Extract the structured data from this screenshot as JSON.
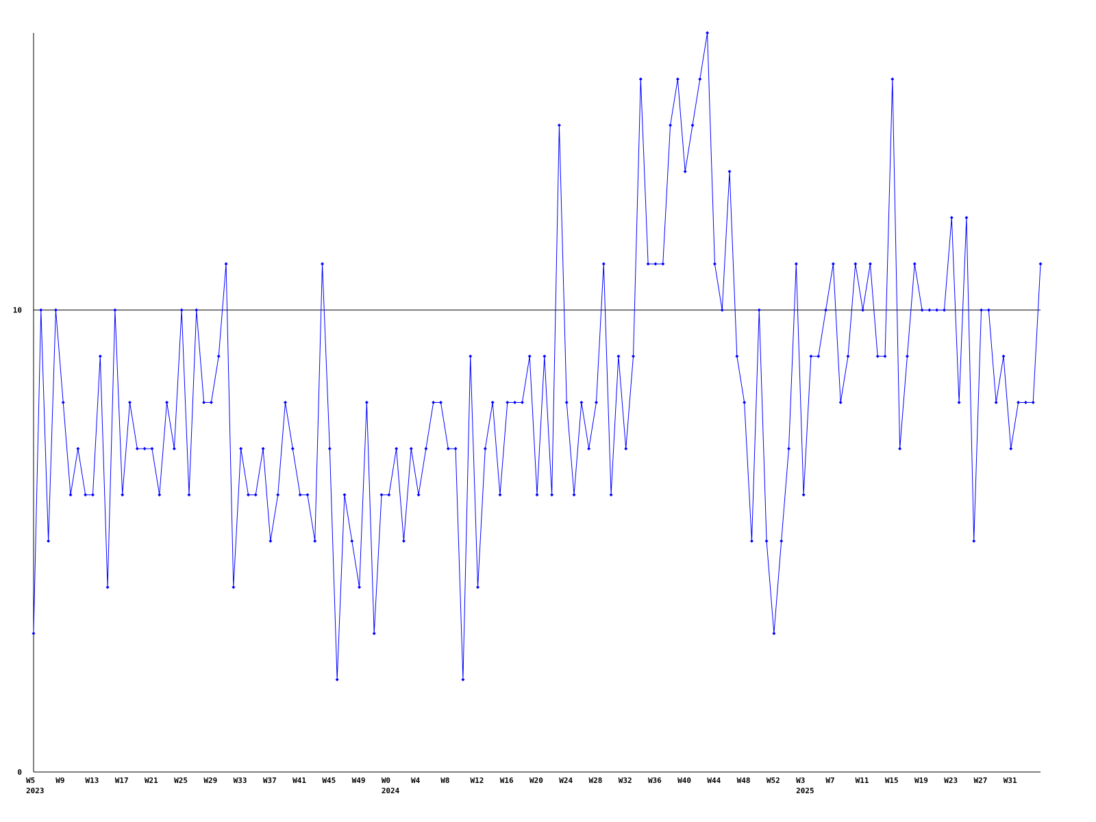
{
  "chart_data": {
    "type": "line",
    "categories": [
      "W5",
      null,
      null,
      null,
      "W9",
      null,
      null,
      null,
      "W13",
      null,
      null,
      null,
      "W17",
      null,
      null,
      null,
      "W21",
      null,
      null,
      null,
      "W25",
      null,
      null,
      null,
      "W29",
      null,
      null,
      null,
      "W33",
      null,
      null,
      null,
      "W37",
      null,
      null,
      null,
      "W41",
      null,
      null,
      null,
      "W45",
      null,
      null,
      null,
      "W49",
      null,
      null,
      null,
      "W0",
      null,
      null,
      null,
      "W4",
      null,
      null,
      null,
      "W8",
      null,
      null,
      null,
      "W12",
      null,
      null,
      null,
      "W16",
      null,
      null,
      null,
      "W20",
      null,
      null,
      null,
      "W24",
      null,
      null,
      null,
      "W28",
      null,
      null,
      null,
      "W32",
      null,
      null,
      null,
      "W36",
      null,
      null,
      null,
      "W40",
      null,
      null,
      null,
      "W44",
      null,
      null,
      null,
      "W48",
      null,
      null,
      null,
      "W52",
      null,
      null,
      null,
      "W3",
      null,
      null,
      null,
      "W7",
      null,
      null,
      null,
      "W11",
      null,
      null,
      null,
      "W15",
      null,
      null,
      null,
      "W19",
      null,
      null,
      null,
      "W23",
      null,
      null,
      null,
      "W27",
      null,
      null,
      null,
      "W31",
      null,
      null,
      null,
      null
    ],
    "year_labels": [
      {
        "index": 0,
        "label": "2023"
      },
      {
        "index": 48,
        "label": "2024"
      },
      {
        "index": 104,
        "label": "2025"
      }
    ],
    "series": [
      {
        "color": "#0000ff",
        "values": [
          3,
          10,
          5,
          10,
          8,
          6,
          7,
          6,
          6,
          9,
          4,
          10,
          6,
          8,
          7,
          7,
          7,
          6,
          8,
          7,
          10,
          6,
          10,
          8,
          8,
          9,
          11,
          4,
          7,
          6,
          6,
          7,
          5,
          6,
          8,
          7,
          6,
          6,
          5,
          11,
          7,
          2,
          6,
          5,
          4,
          8,
          3,
          6,
          6,
          7,
          5,
          7,
          6,
          7,
          8,
          8,
          7,
          7,
          2,
          9,
          4,
          7,
          8,
          6,
          8,
          8,
          8,
          9,
          6,
          9,
          6,
          14,
          8,
          6,
          8,
          7,
          8,
          11,
          6,
          9,
          7,
          9,
          15,
          11,
          11,
          11,
          14,
          15,
          13,
          14,
          15,
          16,
          11,
          10,
          13,
          9,
          8,
          5,
          10,
          5,
          3,
          5,
          7,
          11,
          6,
          9,
          9,
          10,
          11,
          8,
          9,
          11,
          10,
          11,
          9,
          9,
          15,
          7,
          9,
          11,
          10,
          10,
          10,
          10,
          12,
          8,
          12,
          5,
          10,
          10,
          8,
          9,
          7,
          8,
          8,
          8,
          11
        ]
      }
    ],
    "ylim": [
      0,
      16
    ],
    "yticks": [
      0,
      10
    ],
    "grid": true,
    "grid_color": "#000000"
  }
}
